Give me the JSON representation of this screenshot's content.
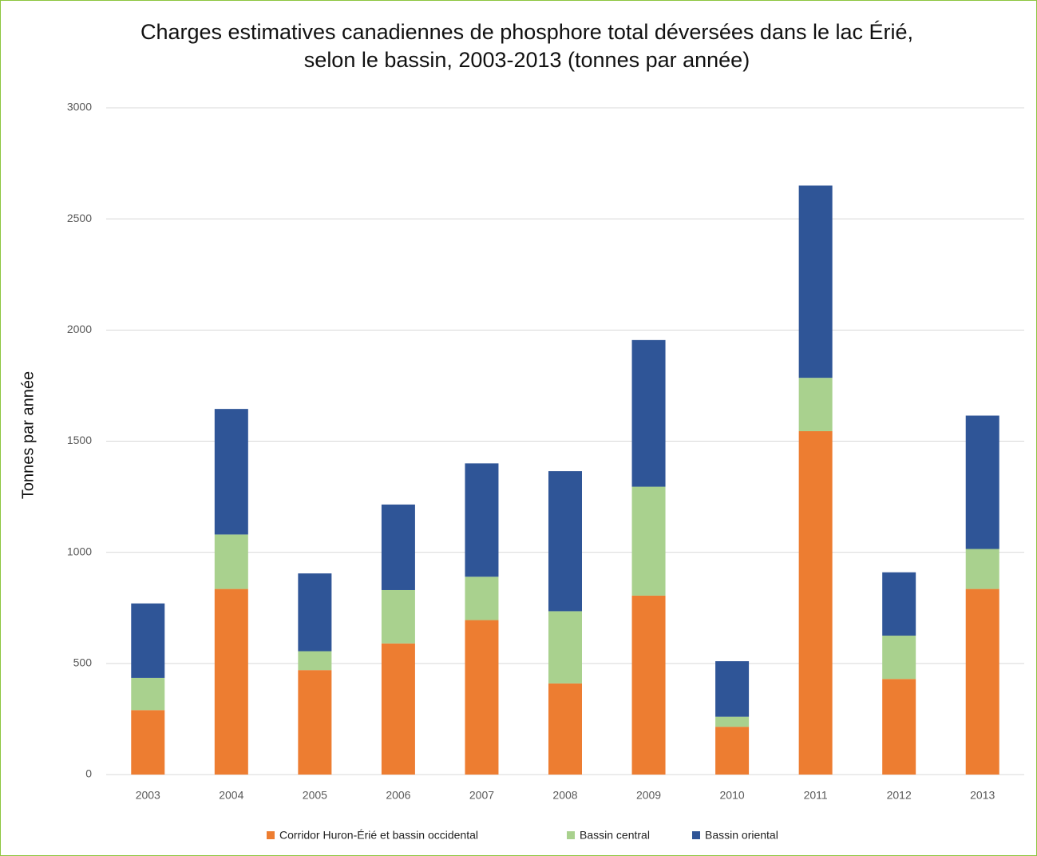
{
  "chart_data": {
    "type": "stacked_bar",
    "title": [
      "Charges estimatives canadiennes de phosphore total déversées dans le lac Érié,",
      "selon le bassin, 2003-2013 (tonnes par année)"
    ],
    "y_label": "Tonnes par année",
    "categories": [
      "2003",
      "2004",
      "2005",
      "2006",
      "2007",
      "2008",
      "2009",
      "2010",
      "2011",
      "2012",
      "2013"
    ],
    "series": [
      {
        "name": "Corridor Huron-Érié et bassin occidental",
        "color": "#ed7d31",
        "values": [
          290,
          835,
          470,
          590,
          695,
          410,
          805,
          215,
          1545,
          430,
          835
        ]
      },
      {
        "name": "Bassin central",
        "color": "#a9d18e",
        "values": [
          145,
          245,
          85,
          240,
          195,
          325,
          490,
          45,
          240,
          195,
          180
        ]
      },
      {
        "name": "Bassin oriental",
        "color": "#2f5597",
        "values": [
          335,
          565,
          350,
          385,
          510,
          630,
          660,
          250,
          865,
          285,
          600
        ]
      }
    ],
    "ylim": [
      0,
      3000
    ],
    "yticks": [
      0,
      500,
      1000,
      1500,
      2000,
      2500,
      3000
    ],
    "grid": true,
    "legend": "bottom"
  }
}
